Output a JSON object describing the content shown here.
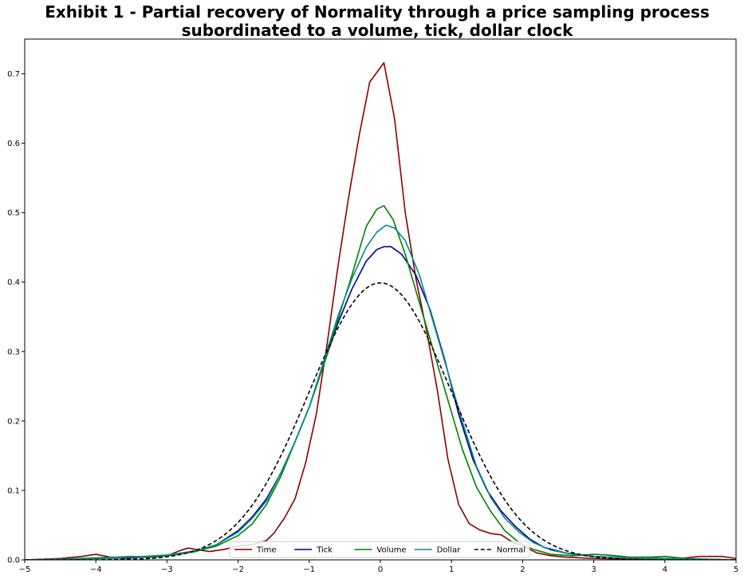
{
  "chart_data": {
    "type": "line",
    "title": "Exhibit 1 - Partial recovery of Normality through a price sampling process",
    "subtitle": "subordinated to a volume, tick, dollar clock",
    "xlabel": "",
    "ylabel": "",
    "xlim": [
      -5,
      5
    ],
    "ylim": [
      0,
      0.75
    ],
    "x_ticks": [
      -5,
      -4,
      -3,
      -2,
      -1,
      0,
      1,
      2,
      3,
      4,
      5
    ],
    "x_tick_labels": [
      "−5",
      "−4",
      "−3",
      "−2",
      "−1",
      "0",
      "1",
      "2",
      "3",
      "4",
      "5"
    ],
    "y_ticks": [
      0,
      0.1,
      0.2,
      0.3,
      0.4,
      0.5,
      0.6,
      0.7
    ],
    "y_tick_labels": [
      "0.0",
      "0.1",
      "0.2",
      "0.3",
      "0.4",
      "0.5",
      "0.6",
      "0.7"
    ],
    "grid": false,
    "legend": {
      "placement": "bottom-center",
      "columns": 5
    },
    "series": [
      {
        "name": "Time",
        "color": "#8b0000",
        "dash": "solid",
        "points": [
          [
            -5,
            0
          ],
          [
            -4.5,
            0.002
          ],
          [
            -4.2,
            0.005
          ],
          [
            -4,
            0.008
          ],
          [
            -3.8,
            0.004
          ],
          [
            -3.6,
            0.002
          ],
          [
            -3.4,
            0.004
          ],
          [
            -3.2,
            0.004
          ],
          [
            -3,
            0.006
          ],
          [
            -2.8,
            0.014
          ],
          [
            -2.7,
            0.017
          ],
          [
            -2.6,
            0.015
          ],
          [
            -2.4,
            0.012
          ],
          [
            -2.2,
            0.015
          ],
          [
            -2,
            0.02
          ],
          [
            -1.8,
            0.022
          ],
          [
            -1.6,
            0.028
          ],
          [
            -1.5,
            0.038
          ],
          [
            -1.35,
            0.06
          ],
          [
            -1.2,
            0.088
          ],
          [
            -1.05,
            0.14
          ],
          [
            -0.9,
            0.21
          ],
          [
            -0.75,
            0.31
          ],
          [
            -0.6,
            0.42
          ],
          [
            -0.45,
            0.52
          ],
          [
            -0.3,
            0.61
          ],
          [
            -0.15,
            0.688
          ],
          [
            0.05,
            0.716
          ],
          [
            0.2,
            0.635
          ],
          [
            0.35,
            0.5
          ],
          [
            0.5,
            0.405
          ],
          [
            0.65,
            0.33
          ],
          [
            0.8,
            0.245
          ],
          [
            0.95,
            0.145
          ],
          [
            1.1,
            0.08
          ],
          [
            1.25,
            0.052
          ],
          [
            1.4,
            0.043
          ],
          [
            1.55,
            0.038
          ],
          [
            1.7,
            0.036
          ],
          [
            1.85,
            0.026
          ],
          [
            2,
            0.02
          ],
          [
            2.2,
            0.01
          ],
          [
            2.4,
            0.006
          ],
          [
            2.6,
            0.004
          ],
          [
            3,
            0.002
          ],
          [
            3.5,
            0.001
          ],
          [
            4,
            0
          ],
          [
            4.3,
            0.003
          ],
          [
            4.5,
            0.005
          ],
          [
            4.8,
            0.005
          ],
          [
            5,
            0.002
          ]
        ]
      },
      {
        "name": "Tick",
        "color": "#00008b",
        "dash": "solid",
        "points": [
          [
            -5,
            0
          ],
          [
            -4.5,
            0.001
          ],
          [
            -4,
            0.002
          ],
          [
            -3.5,
            0.003
          ],
          [
            -3,
            0.006
          ],
          [
            -2.6,
            0.012
          ],
          [
            -2.3,
            0.022
          ],
          [
            -2,
            0.042
          ],
          [
            -1.8,
            0.062
          ],
          [
            -1.6,
            0.088
          ],
          [
            -1.4,
            0.125
          ],
          [
            -1.2,
            0.17
          ],
          [
            -1,
            0.22
          ],
          [
            -0.8,
            0.28
          ],
          [
            -0.6,
            0.34
          ],
          [
            -0.4,
            0.39
          ],
          [
            -0.2,
            0.43
          ],
          [
            -0.05,
            0.447
          ],
          [
            0.05,
            0.451
          ],
          [
            0.15,
            0.451
          ],
          [
            0.3,
            0.44
          ],
          [
            0.5,
            0.41
          ],
          [
            0.7,
            0.36
          ],
          [
            0.9,
            0.29
          ],
          [
            1.1,
            0.21
          ],
          [
            1.3,
            0.145
          ],
          [
            1.5,
            0.1
          ],
          [
            1.7,
            0.07
          ],
          [
            1.9,
            0.048
          ],
          [
            2.1,
            0.03
          ],
          [
            2.3,
            0.018
          ],
          [
            2.6,
            0.01
          ],
          [
            3,
            0.005
          ],
          [
            3.5,
            0.003
          ],
          [
            4,
            0.002
          ],
          [
            4.5,
            0.001
          ],
          [
            5,
            0
          ]
        ]
      },
      {
        "name": "Volume",
        "color": "#008000",
        "dash": "solid",
        "points": [
          [
            -5,
            0
          ],
          [
            -4.5,
            0.001
          ],
          [
            -4,
            0.003
          ],
          [
            -3.7,
            0.004
          ],
          [
            -3.5,
            0.005
          ],
          [
            -3.2,
            0.004
          ],
          [
            -3,
            0.006
          ],
          [
            -2.6,
            0.012
          ],
          [
            -2.3,
            0.02
          ],
          [
            -2,
            0.035
          ],
          [
            -1.8,
            0.052
          ],
          [
            -1.6,
            0.08
          ],
          [
            -1.4,
            0.12
          ],
          [
            -1.2,
            0.17
          ],
          [
            -1,
            0.22
          ],
          [
            -0.8,
            0.28
          ],
          [
            -0.6,
            0.345
          ],
          [
            -0.4,
            0.41
          ],
          [
            -0.2,
            0.48
          ],
          [
            -0.05,
            0.505
          ],
          [
            0.05,
            0.51
          ],
          [
            0.18,
            0.49
          ],
          [
            0.35,
            0.44
          ],
          [
            0.55,
            0.37
          ],
          [
            0.75,
            0.3
          ],
          [
            0.95,
            0.23
          ],
          [
            1.15,
            0.16
          ],
          [
            1.35,
            0.105
          ],
          [
            1.55,
            0.07
          ],
          [
            1.75,
            0.042
          ],
          [
            1.95,
            0.025
          ],
          [
            2.15,
            0.015
          ],
          [
            2.4,
            0.008
          ],
          [
            2.7,
            0.006
          ],
          [
            3,
            0.008
          ],
          [
            3.2,
            0.007
          ],
          [
            3.5,
            0.004
          ],
          [
            3.8,
            0.004
          ],
          [
            4,
            0.005
          ],
          [
            4.3,
            0.002
          ],
          [
            4.6,
            0.001
          ],
          [
            5,
            0
          ]
        ]
      },
      {
        "name": "Dollar",
        "color": "#008b8b",
        "dash": "solid",
        "points": [
          [
            -5,
            0
          ],
          [
            -4.5,
            0.001
          ],
          [
            -4,
            0.002
          ],
          [
            -3.5,
            0.004
          ],
          [
            -3,
            0.007
          ],
          [
            -2.6,
            0.013
          ],
          [
            -2.3,
            0.022
          ],
          [
            -2,
            0.04
          ],
          [
            -1.8,
            0.06
          ],
          [
            -1.6,
            0.085
          ],
          [
            -1.4,
            0.125
          ],
          [
            -1.2,
            0.17
          ],
          [
            -1,
            0.22
          ],
          [
            -0.8,
            0.285
          ],
          [
            -0.6,
            0.35
          ],
          [
            -0.4,
            0.405
          ],
          [
            -0.2,
            0.45
          ],
          [
            -0.05,
            0.472
          ],
          [
            0.08,
            0.482
          ],
          [
            0.2,
            0.478
          ],
          [
            0.35,
            0.46
          ],
          [
            0.55,
            0.41
          ],
          [
            0.75,
            0.34
          ],
          [
            0.95,
            0.27
          ],
          [
            1.15,
            0.2
          ],
          [
            1.35,
            0.135
          ],
          [
            1.55,
            0.09
          ],
          [
            1.75,
            0.06
          ],
          [
            1.95,
            0.04
          ],
          [
            2.15,
            0.025
          ],
          [
            2.4,
            0.014
          ],
          [
            2.7,
            0.008
          ],
          [
            3,
            0.005
          ],
          [
            3.5,
            0.003
          ],
          [
            4,
            0.002
          ],
          [
            4.5,
            0.001
          ],
          [
            5,
            0
          ]
        ]
      },
      {
        "name": "Normal",
        "color": "#000000",
        "dash": "dashed",
        "normal_pdf": {
          "mean": 0,
          "sd": 1
        }
      }
    ]
  }
}
